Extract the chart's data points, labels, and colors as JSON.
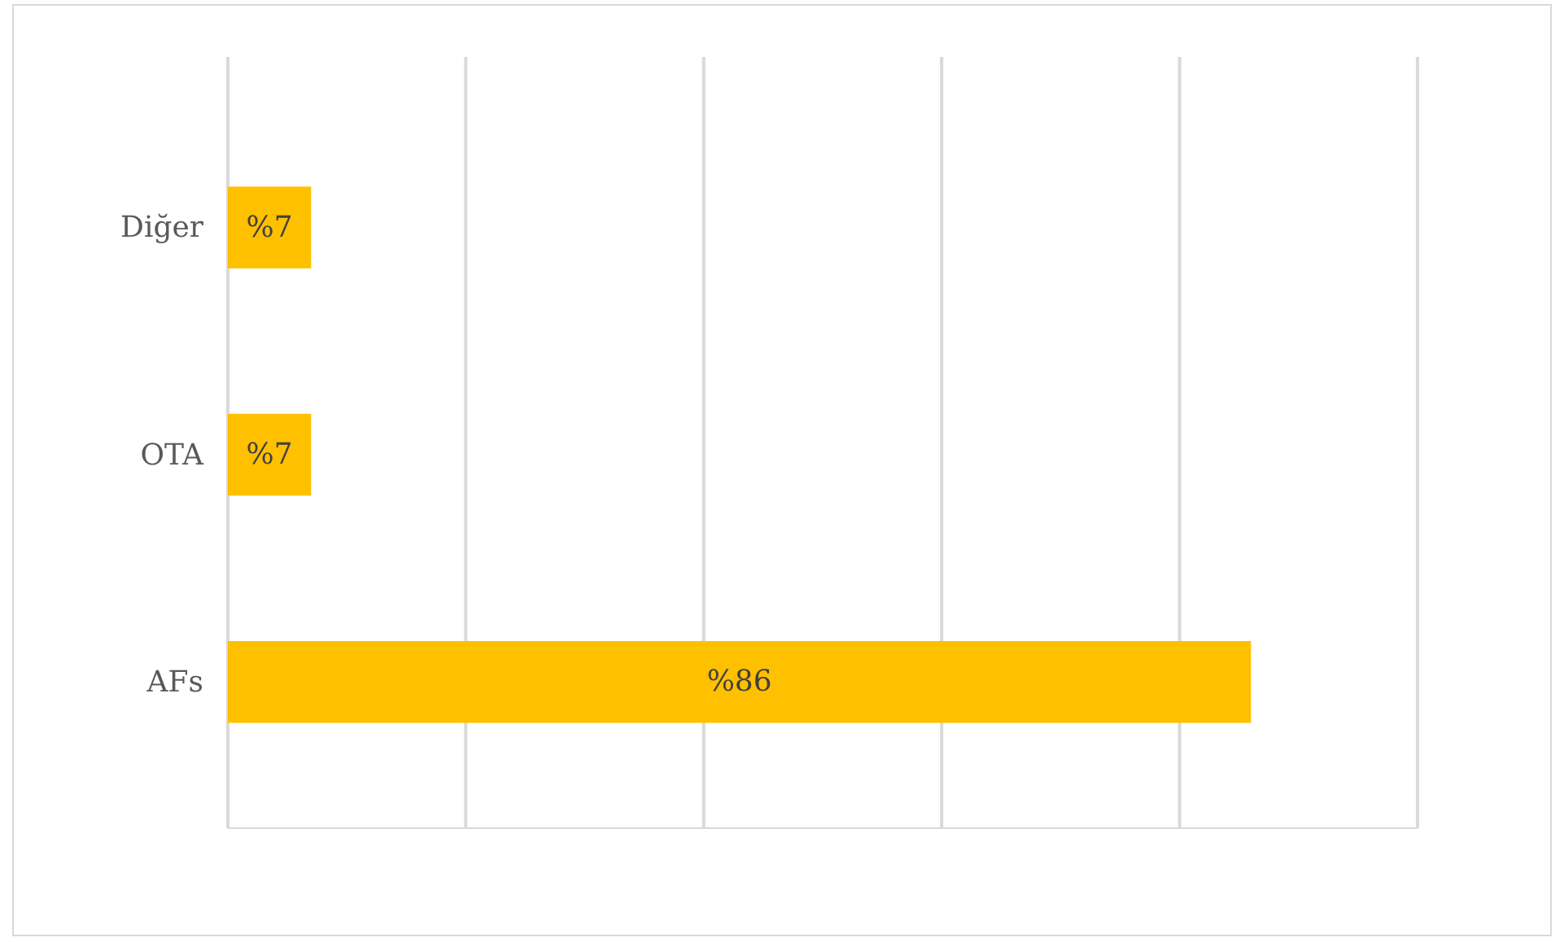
{
  "chart_data": {
    "type": "bar",
    "orientation": "horizontal",
    "categories": [
      "Diğer",
      "OTA",
      "AFs"
    ],
    "values": [
      7,
      7,
      86
    ],
    "value_labels": [
      "%7",
      "%7",
      "%86"
    ],
    "color": "#ffc000",
    "xlim": [
      0,
      100
    ],
    "xticks": [
      {
        "value": 0,
        "label": null
      },
      {
        "value": 20,
        "label": null
      },
      {
        "value": 40,
        "label": null
      },
      {
        "value": 60,
        "label": null
      },
      {
        "value": 80,
        "label": null
      },
      {
        "value": 100,
        "label": null
      }
    ],
    "grid": "x",
    "tick_labels": "y"
  }
}
